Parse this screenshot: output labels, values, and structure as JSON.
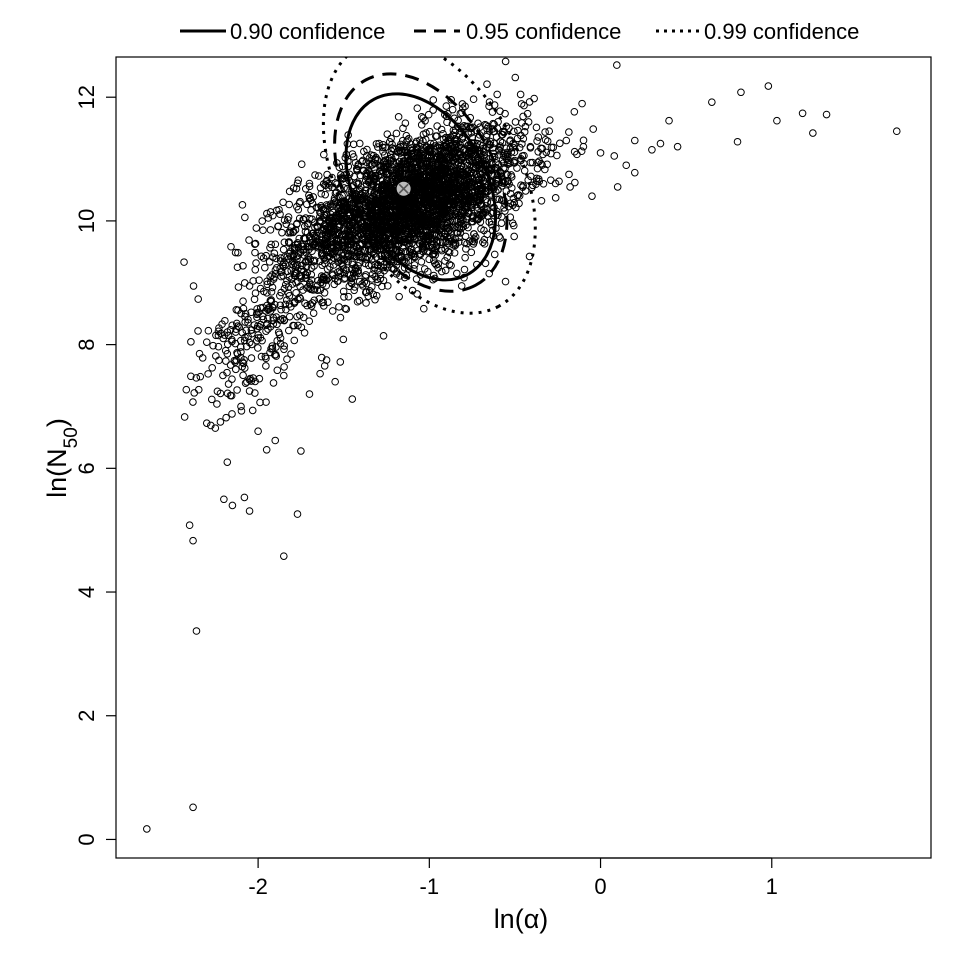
{
  "chart_data": {
    "type": "scatter",
    "title": "",
    "xlabel": "ln(α)",
    "ylabel": "ln(N50)",
    "ylabel_main": "ln(N",
    "ylabel_sub": "50",
    "ylabel_close": ")",
    "xlim": [
      -2.83,
      1.93
    ],
    "ylim": [
      -0.3,
      12.65
    ],
    "x_ticks": [
      -2,
      -1,
      0,
      1
    ],
    "x_tick_labels": [
      "-2",
      "-1",
      "0",
      "1"
    ],
    "y_ticks": [
      0,
      2,
      4,
      6,
      8,
      10,
      12
    ],
    "y_tick_labels": [
      "0",
      "2",
      "4",
      "6",
      "8",
      "10",
      "12"
    ],
    "grid": false,
    "legend_position": "top, outside plot",
    "legend": [
      {
        "label": "0.90 confidence",
        "style": "solid"
      },
      {
        "label": "0.95 confidence",
        "style": "dashed"
      },
      {
        "label": "0.99 confidence",
        "style": "dotted"
      }
    ],
    "point_estimate": {
      "x": -1.15,
      "y": 10.52,
      "color": "#bdbdbd"
    },
    "confidence_regions": [
      {
        "level": 0.9,
        "style": "solid",
        "center": [
          -1.05,
          10.55
        ],
        "semi_axes": [
          0.58,
          1.07
        ],
        "rotation_deg": -28
      },
      {
        "level": 0.95,
        "style": "dashed",
        "center": [
          -1.05,
          10.62
        ],
        "semi_axes": [
          0.68,
          1.22
        ],
        "rotation_deg": -28
      },
      {
        "level": 0.99,
        "style": "dotted",
        "center": [
          -1.0,
          10.72
        ],
        "semi_axes": [
          0.86,
          1.47
        ],
        "rotation_deg": -28
      }
    ],
    "series": [
      {
        "marker": "open-circle",
        "x": [
          -2.65,
          -2.38,
          -2.36,
          -2.4,
          -2.38,
          -1.85,
          -1.77,
          -2.05,
          -2.2,
          -2.15,
          -2.08,
          -2.22,
          -2.0,
          -1.9,
          -2.3,
          -2.25,
          -2.18,
          -1.95,
          -1.75,
          -1.45,
          -1.55,
          -1.7,
          -2.1,
          -2.05,
          -1.85,
          -1.6,
          -2.3,
          -2.12,
          -1.88,
          -1.52,
          -0.42,
          -0.3,
          -0.2,
          -0.1,
          0.0,
          0.08,
          0.15,
          0.2,
          0.3,
          0.35,
          0.4,
          0.45,
          0.2,
          0.1,
          -0.05,
          -0.15,
          0.65,
          0.8,
          0.82,
          0.98,
          1.03,
          1.18,
          1.24,
          1.32,
          1.73
        ],
        "y": [
          0.17,
          0.52,
          3.37,
          5.08,
          4.83,
          4.58,
          5.26,
          5.31,
          5.5,
          5.4,
          5.53,
          6.75,
          6.6,
          6.45,
          6.73,
          6.65,
          6.1,
          6.3,
          6.28,
          7.12,
          7.4,
          7.2,
          7.0,
          7.25,
          7.5,
          7.75,
          8.04,
          7.85,
          8.2,
          7.72,
          11.6,
          11.45,
          11.3,
          11.2,
          11.1,
          11.05,
          10.9,
          11.3,
          11.15,
          11.25,
          11.62,
          11.2,
          10.78,
          10.55,
          10.4,
          10.62,
          11.92,
          11.28,
          12.08,
          12.18,
          11.62,
          11.74,
          11.42,
          11.72,
          11.45
        ],
        "cloud": {
          "description": "dense cloud of bootstrap estimates around the point estimate",
          "center": [
            -1.1,
            10.3
          ],
          "spread": [
            0.33,
            0.6
          ],
          "correlation": 0.5,
          "count": 3200,
          "tail": {
            "from": [
              -1.6,
              9.6
            ],
            "to": [
              -2.25,
              7.5
            ],
            "count": 350
          }
        }
      }
    ]
  },
  "legend_labels": {
    "l90": "0.90 confidence",
    "l95": "0.95 confidence",
    "l99": "0.99 confidence"
  }
}
